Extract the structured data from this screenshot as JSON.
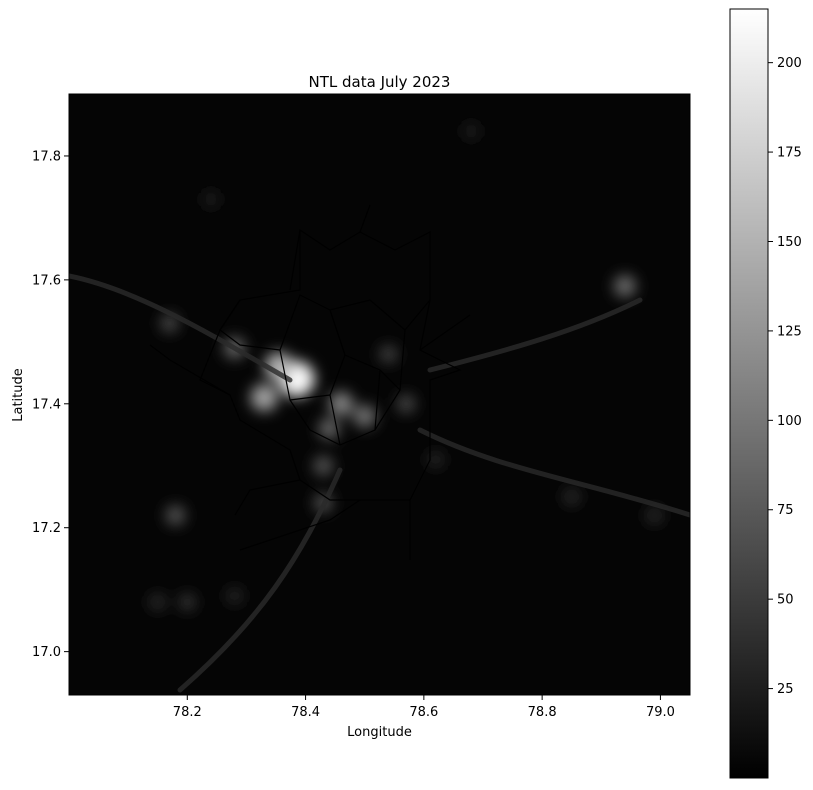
{
  "chart_data": {
    "type": "heatmap",
    "title": "NTL data July 2023",
    "xlabel": "Longitude",
    "ylabel": "Latitude",
    "xlim": [
      78.0,
      79.05
    ],
    "ylim": [
      16.93,
      17.9
    ],
    "xticks": [
      78.2,
      78.4,
      78.6,
      78.8,
      79.0
    ],
    "xtick_labels": [
      "78.2",
      "78.4",
      "78.6",
      "78.8",
      "79.0"
    ],
    "yticks": [
      17.0,
      17.2,
      17.4,
      17.6,
      17.8
    ],
    "ytick_labels": [
      "17.0",
      "17.2",
      "17.4",
      "17.6",
      "17.8"
    ],
    "colormap": "gray",
    "color_range": [
      0,
      215
    ],
    "colorbar_ticks": [
      25,
      50,
      75,
      100,
      125,
      150,
      175,
      200
    ],
    "colorbar_tick_labels": [
      "25",
      "50",
      "75",
      "100",
      "125",
      "150",
      "175",
      "200"
    ],
    "grid": false,
    "hotspots": [
      {
        "lon": 78.385,
        "lat": 17.44,
        "value": 210
      },
      {
        "lon": 78.355,
        "lat": 17.46,
        "value": 150
      },
      {
        "lon": 78.33,
        "lat": 17.41,
        "value": 135
      },
      {
        "lon": 78.46,
        "lat": 17.4,
        "value": 110
      },
      {
        "lon": 78.5,
        "lat": 17.38,
        "value": 95
      },
      {
        "lon": 78.44,
        "lat": 17.36,
        "value": 85
      },
      {
        "lon": 78.28,
        "lat": 17.49,
        "value": 85
      },
      {
        "lon": 78.43,
        "lat": 17.3,
        "value": 70
      },
      {
        "lon": 78.57,
        "lat": 17.4,
        "value": 60
      },
      {
        "lon": 78.54,
        "lat": 17.48,
        "value": 55
      },
      {
        "lon": 78.17,
        "lat": 17.53,
        "value": 60
      },
      {
        "lon": 78.18,
        "lat": 17.22,
        "value": 70
      },
      {
        "lon": 78.43,
        "lat": 17.24,
        "value": 65
      },
      {
        "lon": 78.94,
        "lat": 17.59,
        "value": 90
      },
      {
        "lon": 78.2,
        "lat": 17.08,
        "value": 45
      },
      {
        "lon": 78.15,
        "lat": 17.08,
        "value": 40
      },
      {
        "lon": 78.28,
        "lat": 17.09,
        "value": 35
      },
      {
        "lon": 78.62,
        "lat": 17.31,
        "value": 35
      },
      {
        "lon": 78.85,
        "lat": 17.25,
        "value": 40
      },
      {
        "lon": 78.99,
        "lat": 17.22,
        "value": 40
      },
      {
        "lon": 78.68,
        "lat": 17.84,
        "value": 30
      },
      {
        "lon": 78.24,
        "lat": 17.73,
        "value": 30
      }
    ]
  }
}
